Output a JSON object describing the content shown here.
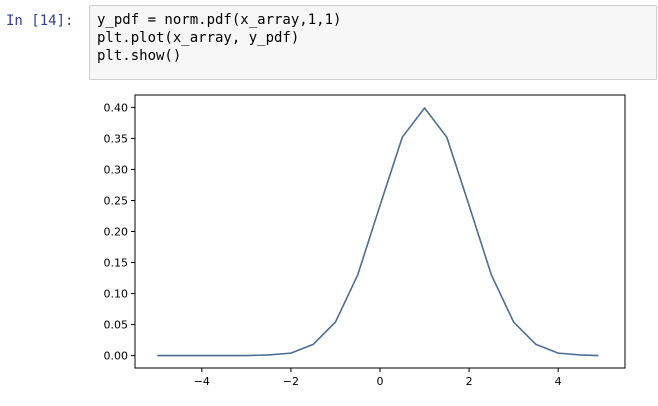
{
  "cell": {
    "prompt": "In [14]:",
    "code_lines": [
      "y_pdf = norm.pdf(x_array,1,1)",
      "plt.plot(x_array, y_pdf)",
      "plt.show()"
    ]
  },
  "colors": {
    "prompt": "#303f9f",
    "code_bg": "#f7f7f7",
    "code_border": "#cfcfcf",
    "line": "#4c6e94",
    "axes": "#000000"
  },
  "chart_data": {
    "type": "line",
    "title": "",
    "xlabel": "",
    "ylabel": "",
    "xlim": [
      -5.5,
      5.5
    ],
    "ylim": [
      -0.02,
      0.42
    ],
    "xticks": [
      -4,
      -2,
      0,
      2,
      4
    ],
    "xtick_labels": [
      "−4",
      "−2",
      "0",
      "2",
      "4"
    ],
    "yticks": [
      0.0,
      0.05,
      0.1,
      0.15,
      0.2,
      0.25,
      0.3,
      0.35,
      0.4
    ],
    "ytick_labels": [
      "0.00",
      "0.05",
      "0.10",
      "0.15",
      "0.20",
      "0.25",
      "0.30",
      "0.35",
      "0.40"
    ],
    "grid": false,
    "series": [
      {
        "x": [
          -5,
          -4.5,
          -4,
          -3.5,
          -3,
          -2.5,
          -2,
          -1.5,
          -1,
          -0.5,
          0,
          0.5,
          1,
          1.5,
          2,
          2.5,
          3,
          3.5,
          4,
          4.5,
          4.9
        ],
        "values": [
          0.0,
          0.0,
          0.0,
          0.0,
          0.0,
          0.001,
          0.004,
          0.018,
          0.054,
          0.13,
          0.242,
          0.352,
          0.399,
          0.352,
          0.242,
          0.13,
          0.054,
          0.018,
          0.004,
          0.001,
          0.0
        ]
      }
    ]
  }
}
